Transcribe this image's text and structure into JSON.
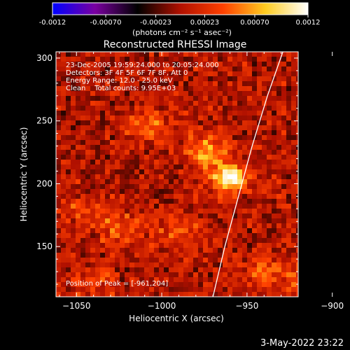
{
  "chart_data": {
    "type": "heatmap",
    "title": "Reconstructed RHESSI Image",
    "xlabel": "Heliocentric X (arcsec)",
    "ylabel": "Heliocentric Y (arcsec)",
    "xlim": [
      -1062,
      -920
    ],
    "ylim": [
      110,
      305
    ],
    "xticks": [
      -1050,
      -1000,
      -950,
      -900
    ],
    "yticks": [
      150,
      200,
      250,
      300
    ],
    "colorbar": {
      "range": [
        -0.0012,
        0.0012
      ],
      "ticks": [
        "-0.0012",
        "-0.00070",
        "-0.00023",
        "0.00023",
        "0.00070",
        "0.0012"
      ],
      "unit_label": "(photons cm⁻² s⁻¹ asec⁻²)",
      "colormap": [
        "#0000ff",
        "#7a00a0",
        "#000000",
        "#b01000",
        "#ff4000",
        "#ffcc20",
        "#ffffff"
      ]
    },
    "annotations": [
      "23-Dec-2005 19:59:24.000 to 20:05:24.000",
      "Detectors: 3F 4F 5F 6F 7F 8F, Att 0",
      "Energy Range: 12.0 - 25.0 keV",
      "Clean    Total counts: 9.95E+03"
    ],
    "peak_label": "Position of Peak = [-961,204]",
    "peak": {
      "x": -961,
      "y": 204,
      "value": 0.0012
    },
    "secondary_sources": [
      {
        "x": -973,
        "y": 225,
        "value": 0.00065
      },
      {
        "x": -1007,
        "y": 245,
        "value": 0.0004
      },
      {
        "x": -1045,
        "y": 180,
        "value": 0.00025
      },
      {
        "x": -1025,
        "y": 165,
        "value": 0.00035
      },
      {
        "x": -990,
        "y": 162,
        "value": 0.00035
      },
      {
        "x": -940,
        "y": 130,
        "value": 0.0004
      },
      {
        "x": -918,
        "y": 120,
        "value": 0.0003
      },
      {
        "x": -1040,
        "y": 122,
        "value": 0.00028
      }
    ],
    "limb_curve": [
      {
        "x": -970,
        "y": 110
      },
      {
        "x": -963,
        "y": 150
      },
      {
        "x": -955,
        "y": 190
      },
      {
        "x": -947,
        "y": 230
      },
      {
        "x": -938,
        "y": 270
      },
      {
        "x": -929,
        "y": 305
      }
    ],
    "grid": false
  },
  "footer": {
    "date": "3-May-2022 23:22"
  }
}
